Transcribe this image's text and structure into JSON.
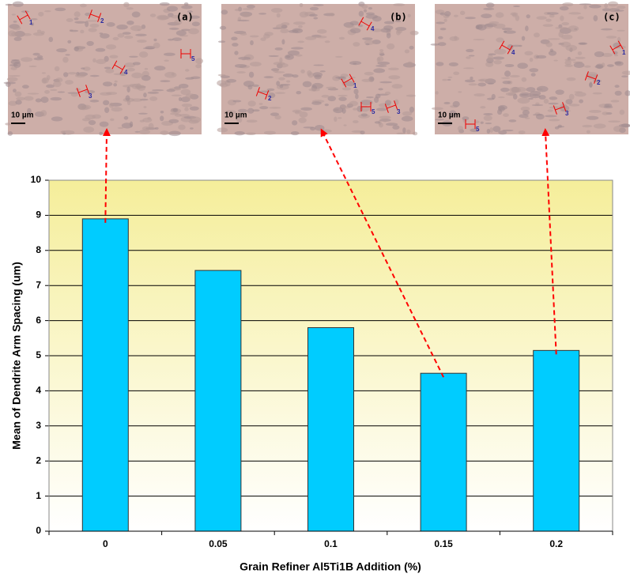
{
  "chart_data": {
    "type": "bar",
    "y_label": "Mean of Dendrite Arm Spacing (um)",
    "x_label": "Grain Refiner Al5Ti1B Addition (%)",
    "categories": [
      "0",
      "0.05",
      "0.1",
      "0.15",
      "0.2"
    ],
    "values": [
      8.9,
      7.43,
      5.8,
      4.5,
      5.15
    ],
    "color": "#00ccff",
    "ylim": [
      0,
      10
    ],
    "yticks": [
      0,
      1,
      2,
      3,
      4,
      5,
      6,
      7,
      8,
      9,
      10
    ],
    "grid": true
  },
  "micrographs": [
    {
      "label": "(a)",
      "scale": "10 µm",
      "markers": [
        "1",
        "2",
        "3",
        "4",
        "5"
      ]
    },
    {
      "label": "(b)",
      "scale": "10 µm",
      "markers": [
        "1",
        "2",
        "3",
        "4",
        "5"
      ]
    },
    {
      "label": "(c)",
      "scale": "10 µm",
      "markers": [
        "1",
        "2",
        "3",
        "4",
        "5"
      ]
    }
  ]
}
